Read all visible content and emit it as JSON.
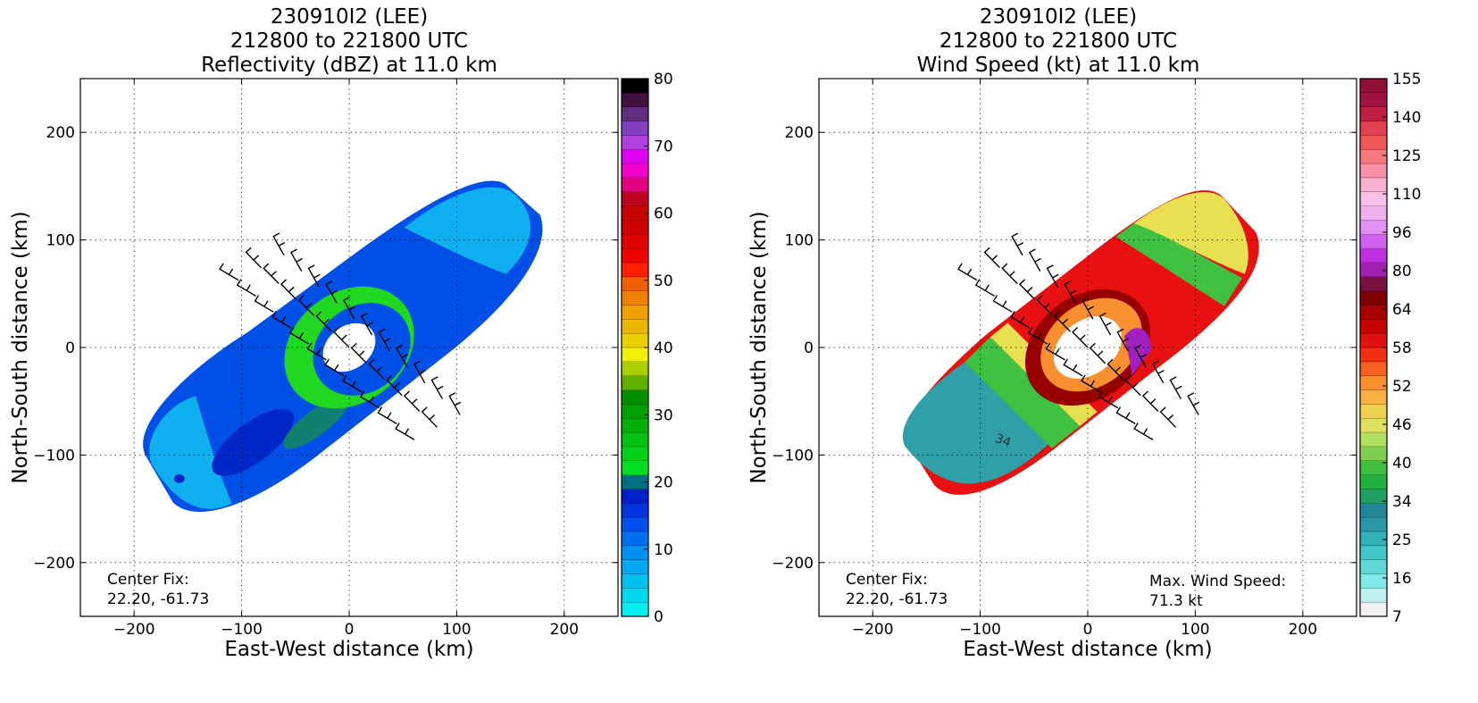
{
  "chart_data": [
    {
      "type": "heatmap",
      "title_lines": [
        "230910I2 (LEE)",
        "212800 to 221800 UTC",
        "Reflectivity (dBZ) at 11.0 km"
      ],
      "xlabel": "East-West distance (km)",
      "ylabel": "North-South distance (km)",
      "xlim": [
        -250,
        250
      ],
      "ylim": [
        -250,
        250
      ],
      "xticks": [
        -200,
        -100,
        0,
        100,
        200
      ],
      "yticks": [
        -200,
        -100,
        0,
        100,
        200
      ],
      "tick_labels": [
        "−200",
        "−100",
        "0",
        "100",
        "200"
      ],
      "grid": true,
      "annotations": {
        "center_fix_label": "Center Fix:",
        "center_fix_value": "22.20, -61.73"
      },
      "colorbar": {
        "ticks": [
          "0",
          "10",
          "20",
          "30",
          "40",
          "50",
          "60",
          "70",
          "80"
        ],
        "colors": [
          "#00eeee",
          "#00d8f0",
          "#00c0f0",
          "#00a8f0",
          "#0090f0",
          "#0070f0",
          "#0050f0",
          "#0035e0",
          "#0020cc",
          "#007080",
          "#00e020",
          "#00d018",
          "#00c010",
          "#00b008",
          "#00a000",
          "#009000",
          "#60b000",
          "#a8d000",
          "#f0f000",
          "#e8d000",
          "#e8b800",
          "#f0a000",
          "#f08000",
          "#f06000",
          "#ff2000",
          "#f00000",
          "#e00000",
          "#d00000",
          "#c80000",
          "#c00020",
          "#e00080",
          "#f000c8",
          "#e000f0",
          "#b040e0",
          "#8040c0",
          "#603080",
          "#401040",
          "#000000"
        ]
      },
      "field": {
        "background_blue": "#0050e8",
        "dark_blue": "#0028c8",
        "light_blue": "#10b0f0",
        "green": "#20d820",
        "teal": "#108070"
      }
    },
    {
      "type": "heatmap",
      "title_lines": [
        "230910I2 (LEE)",
        "212800 to 221800 UTC",
        "Wind Speed (kt) at 11.0 km"
      ],
      "xlabel": "East-West distance (km)",
      "ylabel": "North-South distance (km)",
      "xlim": [
        -250,
        250
      ],
      "ylim": [
        -250,
        250
      ],
      "xticks": [
        -200,
        -100,
        0,
        100,
        200
      ],
      "yticks": [
        -200,
        -100,
        0,
        100,
        200
      ],
      "tick_labels": [
        "−200",
        "−100",
        "0",
        "100",
        "200"
      ],
      "grid": true,
      "annotations": {
        "center_fix_label": "Center Fix:",
        "center_fix_value": "22.20, -61.73",
        "max_wind_label": "Max. Wind Speed:",
        "max_wind_value": "71.3 kt",
        "contour_label": "34"
      },
      "colorbar": {
        "ticks": [
          "7",
          "16",
          "25",
          "34",
          "40",
          "46",
          "52",
          "58",
          "64",
          "80",
          "96",
          "110",
          "125",
          "140",
          "155"
        ],
        "colors": [
          "#f0f0f0",
          "#c0f0f0",
          "#80e8e8",
          "#60d8d8",
          "#40c8c8",
          "#30b0b8",
          "#2898a8",
          "#208898",
          "#20a060",
          "#20b040",
          "#40c040",
          "#80d050",
          "#b0e060",
          "#e0e060",
          "#f0d050",
          "#f8b040",
          "#f89030",
          "#f86020",
          "#f03010",
          "#e01010",
          "#c80000",
          "#a80000",
          "#800000",
          "#781040",
          "#a020b0",
          "#c030e0",
          "#d060f0",
          "#e090f0",
          "#f0b0f0",
          "#f8c0e8",
          "#f8b0d0",
          "#f890a8",
          "#f87880",
          "#f05858",
          "#e04050",
          "#c02040",
          "#a01040",
          "#901038"
        ]
      },
      "field": {
        "teal": "#30a0a8",
        "green": "#40c040",
        "yellow": "#e8e050",
        "orange": "#f89030",
        "red": "#e81010",
        "dark_red": "#980000",
        "purple": "#a020c0"
      }
    }
  ]
}
